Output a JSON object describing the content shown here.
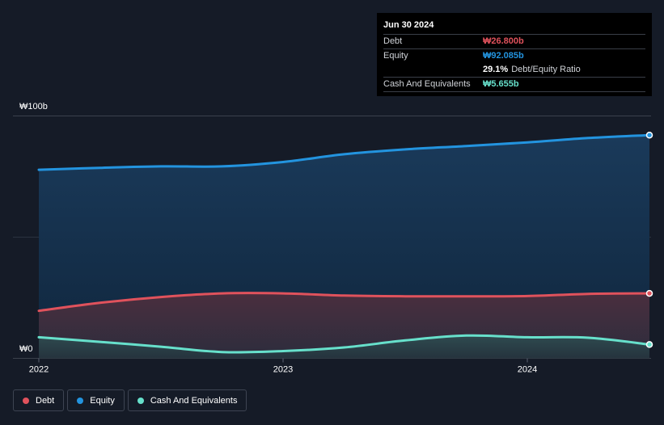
{
  "colors": {
    "background": "#151b27",
    "debt": "#e0525c",
    "equity": "#2394df",
    "cash": "#67e0cb"
  },
  "tooltip": {
    "date": "Jun 30 2024",
    "debt_label": "Debt",
    "debt_value": "₩26.800b",
    "equity_label": "Equity",
    "equity_value": "₩92.085b",
    "ratio_value": "29.1%",
    "ratio_label": "Debt/Equity Ratio",
    "cash_label": "Cash And Equivalents",
    "cash_value": "₩5.655b"
  },
  "legend": {
    "debt": "Debt",
    "equity": "Equity",
    "cash": "Cash And Equivalents"
  },
  "chart_data": {
    "type": "area",
    "title": "",
    "xlabel": "",
    "ylabel": "",
    "ylim": [
      0,
      100
    ],
    "xlim": [
      2022.0,
      2024.5
    ],
    "y_tick_labels": {
      "top": "₩100b",
      "bottom": "₩0"
    },
    "x_ticks": [
      2022,
      2023,
      2024
    ],
    "x_tick_labels": [
      "2022",
      "2023",
      "2024"
    ],
    "series": [
      {
        "name": "Equity",
        "x": [
          2022.0,
          2022.25,
          2022.5,
          2022.75,
          2023.0,
          2023.25,
          2023.5,
          2023.75,
          2024.0,
          2024.25,
          2024.5
        ],
        "values": [
          77.8,
          78.6,
          79.2,
          79.2,
          81.0,
          84.2,
          86.2,
          87.6,
          89.1,
          90.9,
          92.1
        ]
      },
      {
        "name": "Debt",
        "x": [
          2022.0,
          2022.25,
          2022.5,
          2022.75,
          2023.0,
          2023.25,
          2023.5,
          2023.75,
          2024.0,
          2024.25,
          2024.5
        ],
        "values": [
          19.6,
          22.9,
          25.3,
          26.8,
          26.8,
          25.9,
          25.6,
          25.6,
          25.7,
          26.6,
          26.8
        ]
      },
      {
        "name": "Cash And Equivalents",
        "x": [
          2022.0,
          2022.25,
          2022.5,
          2022.75,
          2023.0,
          2023.25,
          2023.5,
          2023.75,
          2024.0,
          2024.25,
          2024.5
        ],
        "values": [
          8.7,
          6.8,
          4.8,
          2.6,
          3.0,
          4.5,
          7.4,
          9.4,
          8.7,
          8.5,
          5.7
        ]
      }
    ]
  }
}
